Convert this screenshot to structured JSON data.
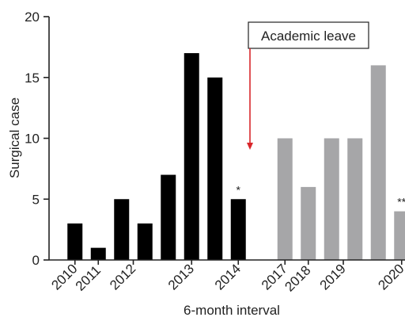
{
  "chart_data": {
    "type": "bar",
    "xlabel": "6-month interval",
    "ylabel": "Surgical case",
    "ylim": [
      0,
      20
    ],
    "yticks": [
      0,
      5,
      10,
      15,
      20
    ],
    "grid": false,
    "x_tick_labels": [
      "2010",
      "2011",
      "2012",
      "2013",
      "2014",
      "2017",
      "2018",
      "2019",
      "2020"
    ],
    "bars": [
      {
        "value": 3,
        "group": "before"
      },
      {
        "value": 1,
        "group": "before"
      },
      {
        "value": 5,
        "group": "before"
      },
      {
        "value": 3,
        "group": "before"
      },
      {
        "value": 7,
        "group": "before"
      },
      {
        "value": 17,
        "group": "before"
      },
      {
        "value": 15,
        "group": "before"
      },
      {
        "value": 5,
        "group": "before",
        "label": "*"
      },
      {
        "value": 10,
        "group": "after"
      },
      {
        "value": 6,
        "group": "after"
      },
      {
        "value": 10,
        "group": "after"
      },
      {
        "value": 10,
        "group": "after"
      },
      {
        "value": 16,
        "group": "after"
      },
      {
        "value": 4,
        "group": "after",
        "label": "**"
      }
    ],
    "colors": {
      "before": "#000000",
      "after": "#a6a6a8",
      "annotation_arrow": "#d9262b"
    },
    "annotation": {
      "text": "Academic leave"
    }
  }
}
